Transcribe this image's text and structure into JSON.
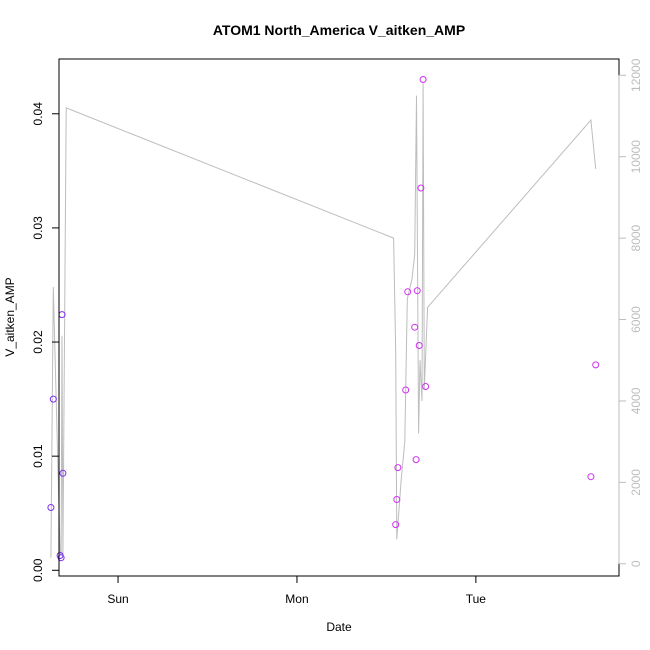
{
  "chart_data": {
    "type": "scatter",
    "title": "ATOM1 North_America V_aitken_AMP",
    "xlabel": "Date",
    "ylabel": "V_aitken_AMP",
    "x_unit": "days",
    "x_ticks": [
      {
        "value": 1.0,
        "label": "Sun"
      },
      {
        "value": 2.0,
        "label": "Mon"
      },
      {
        "value": 3.0,
        "label": "Tue"
      }
    ],
    "xlim": [
      0.67,
      3.8
    ],
    "ylim": [
      -0.0005,
      0.0448
    ],
    "y_ticks": [
      0.0,
      0.01,
      0.02,
      0.03,
      0.04
    ],
    "y_tick_labels": [
      "0.00",
      "0.01",
      "0.02",
      "0.03",
      "0.04"
    ],
    "y2lim": [
      -300,
      12400
    ],
    "y2_ticks": [
      0,
      2000,
      4000,
      6000,
      8000,
      10000,
      12000
    ],
    "y2_tick_labels": [
      "0",
      "2000",
      "4000",
      "6000",
      "8000",
      "10000",
      "12000"
    ],
    "points": [
      {
        "x": 0.625,
        "y": 0.0055,
        "color": "#7b2ff0"
      },
      {
        "x": 0.638,
        "y": 0.015,
        "color": "#7b2ff0"
      },
      {
        "x": 0.676,
        "y": 0.0013,
        "color": "#7b2ff0"
      },
      {
        "x": 0.682,
        "y": 0.0011,
        "color": "#7b2ff0"
      },
      {
        "x": 0.687,
        "y": 0.0224,
        "color": "#7b2ff0"
      },
      {
        "x": 0.692,
        "y": 0.0085,
        "color": "#7b2ff0"
      },
      {
        "x": 2.552,
        "y": 0.004,
        "color": "#d030f0"
      },
      {
        "x": 2.558,
        "y": 0.0062,
        "color": "#d030f0"
      },
      {
        "x": 2.564,
        "y": 0.009,
        "color": "#d030f0"
      },
      {
        "x": 2.608,
        "y": 0.0158,
        "color": "#d030f0"
      },
      {
        "x": 2.619,
        "y": 0.0244,
        "color": "#d030f0"
      },
      {
        "x": 2.658,
        "y": 0.0213,
        "color": "#d030f0"
      },
      {
        "x": 2.666,
        "y": 0.0097,
        "color": "#d030f0"
      },
      {
        "x": 2.672,
        "y": 0.0245,
        "color": "#d030f0"
      },
      {
        "x": 2.683,
        "y": 0.0197,
        "color": "#d030f0"
      },
      {
        "x": 2.693,
        "y": 0.0335,
        "color": "#d030f0"
      },
      {
        "x": 2.705,
        "y": 0.043,
        "color": "#d030f0"
      },
      {
        "x": 2.719,
        "y": 0.0161,
        "color": "#d030f0"
      },
      {
        "x": 3.643,
        "y": 0.0082,
        "color": "#d030f0"
      },
      {
        "x": 3.67,
        "y": 0.018,
        "color": "#d030f0"
      }
    ],
    "line_series": {
      "axis": "right",
      "color": "#bdbdbd",
      "x": [
        0.625,
        0.638,
        0.676,
        0.682,
        0.687,
        0.692,
        0.71,
        2.54,
        2.552,
        2.558,
        2.583,
        2.603,
        2.617,
        2.643,
        2.658,
        2.668,
        2.68,
        2.688,
        2.699,
        2.705,
        2.712,
        2.73,
        3.643,
        3.67
      ],
      "y": [
        150,
        6800,
        300,
        200,
        5600,
        200,
        11200,
        8000,
        5200,
        600,
        2100,
        3000,
        6500,
        7000,
        7600,
        11500,
        3200,
        5000,
        4000,
        11800,
        4300,
        6300,
        10900,
        9700
      ]
    }
  }
}
